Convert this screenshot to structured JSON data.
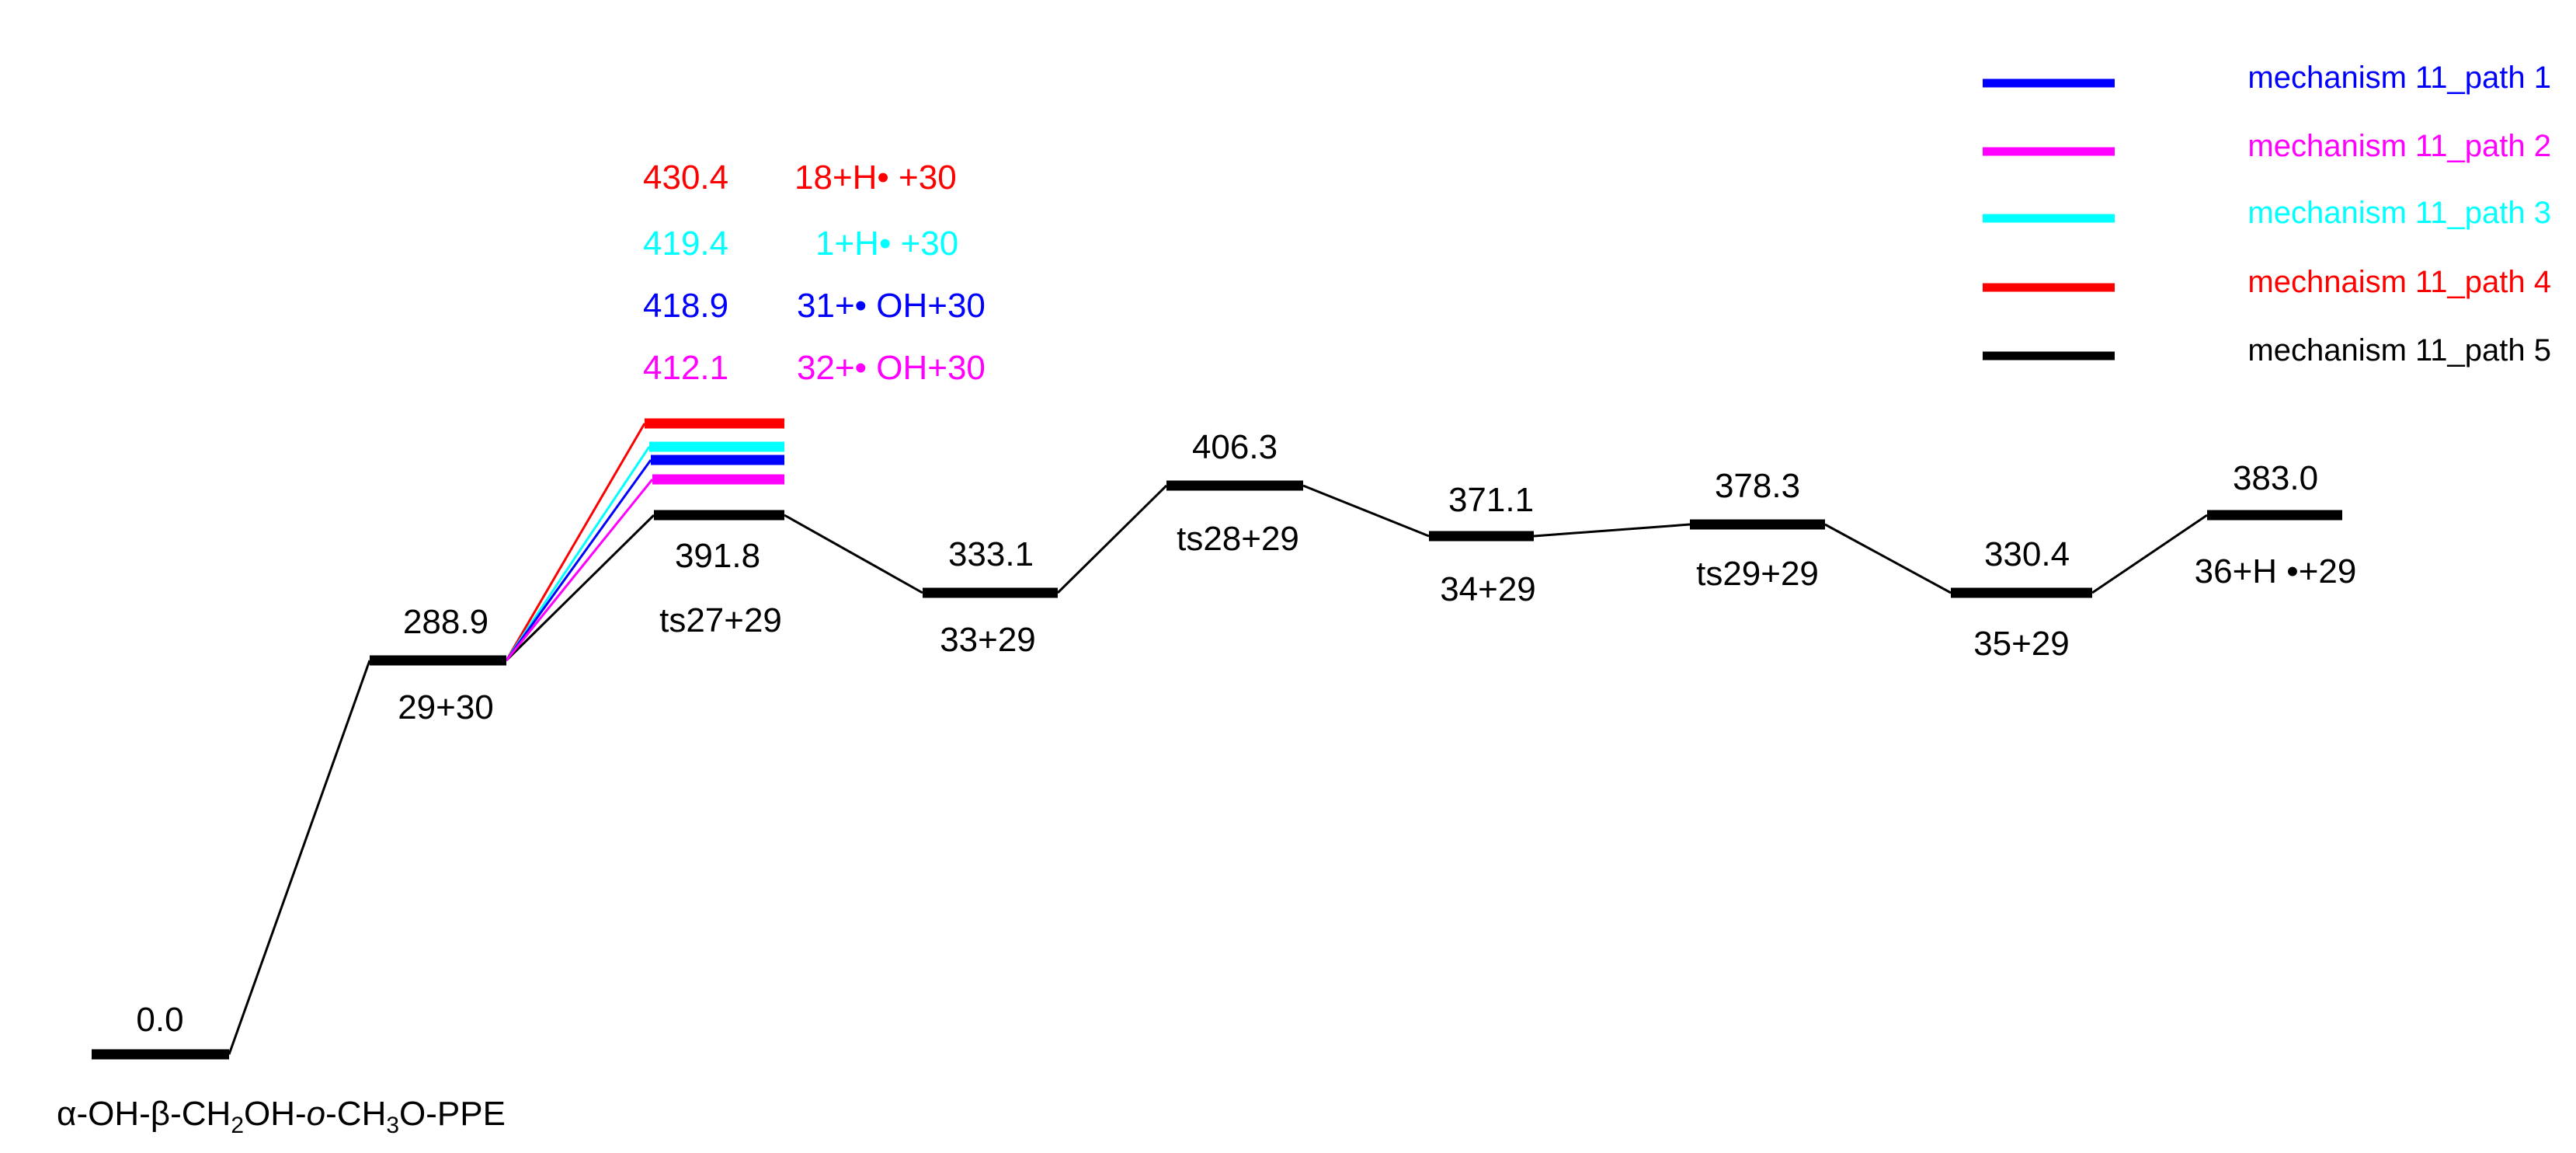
{
  "colors": {
    "path1": "#0000ff",
    "path2": "#ff00ff",
    "path3": "#00ffff",
    "path4": "#ff0000",
    "path5": "#000000"
  },
  "legend": [
    {
      "key": "path1",
      "text": "mechanism 11_path 1"
    },
    {
      "key": "path2",
      "text": "mechanism 11_path 2"
    },
    {
      "key": "path3",
      "text": "mechanism 11_path 3"
    },
    {
      "key": "path4",
      "text": "mechnaism 11_path 4"
    },
    {
      "key": "path5",
      "text": "mechanism 11_path 5"
    }
  ],
  "levels": {
    "start": {
      "energy": 0.0,
      "value": "0.0",
      "label_html": "α-OH-β-CH<tspan class=\"sub\" dy=\"10\">2</tspan><tspan dy=\"-10\">OH-</tspan><tspan font-style=\"italic\">o</tspan><tspan>-CH</tspan><tspan class=\"sub\" dy=\"10\">3</tspan><tspan dy=\"-10\">O-PPE</tspan>"
    },
    "int29_30": {
      "energy": 288.9,
      "value": "288.9",
      "label": "29+30"
    },
    "ts27": {
      "energy": 391.8,
      "value": "391.8",
      "label": "ts27+29"
    },
    "int33": {
      "energy": 333.1,
      "value": "333.1",
      "label": "33+29"
    },
    "ts28": {
      "energy": 406.3,
      "value": "406.3",
      "label": "ts28+29"
    },
    "int34": {
      "energy": 371.1,
      "value": "371.1",
      "label": "34+29"
    },
    "ts29": {
      "energy": 378.3,
      "value": "378.3",
      "label": "ts29+29"
    },
    "int35": {
      "energy": 330.4,
      "value": "330.4",
      "label": "35+29"
    },
    "prod36": {
      "energy": 383.0,
      "value": "383.0",
      "label": "36+H •+29"
    }
  },
  "branches": [
    {
      "key": "path4",
      "energy": 430.4,
      "value": "430.4",
      "label": "18+H• +30"
    },
    {
      "key": "path3",
      "energy": 419.4,
      "value": "419.4",
      "label": "1+H• +30"
    },
    {
      "key": "path1",
      "energy": 418.9,
      "value": "418.9",
      "label": "31+• OH+30"
    },
    {
      "key": "path2",
      "energy": 412.1,
      "value": "412.1",
      "label": "32+• OH+30"
    }
  ]
}
